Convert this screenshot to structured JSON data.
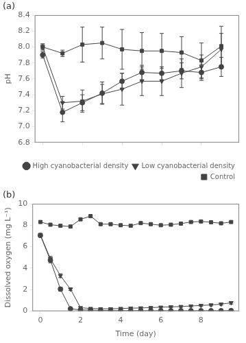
{
  "chart_data": [
    {
      "type": "line",
      "annotation": "(a)",
      "y_label": "pH",
      "x": [
        0,
        1,
        2,
        3,
        4,
        5,
        6,
        7,
        8,
        9
      ],
      "series": [
        {
          "name": "High cyanobacterial density",
          "color": "#444444",
          "marker": "circle",
          "values": [
            7.9,
            7.18,
            7.3,
            7.42,
            7.57,
            7.68,
            7.67,
            7.7,
            7.68,
            7.75
          ],
          "errors": [
            0.04,
            0.12,
            0.1,
            0.14,
            0.1,
            0.09,
            0.08,
            0.1,
            0.1,
            0.12
          ]
        },
        {
          "name": "Low cyanobacterial density",
          "color": "#444444",
          "marker": "triangle_down",
          "values": [
            8.0,
            7.3,
            7.32,
            7.41,
            7.47,
            7.57,
            7.57,
            7.67,
            7.75,
            7.97
          ],
          "errors": [
            0.03,
            0.08,
            0.14,
            0.12,
            0.2,
            0.18,
            0.18,
            0.18,
            0.15,
            0.2
          ]
        },
        {
          "name": "Control",
          "color": "#444444",
          "marker": "square",
          "values": [
            8.0,
            7.92,
            8.03,
            8.05,
            7.97,
            7.95,
            7.95,
            7.93,
            7.83,
            8.01
          ],
          "errors": [
            0.04,
            0.04,
            0.22,
            0.2,
            0.25,
            0.23,
            0.22,
            0.2,
            0.22,
            0.25
          ]
        }
      ],
      "xlim": [
        -0.4,
        9.9
      ],
      "xticks": [
        0,
        2,
        4,
        6,
        8
      ],
      "ylim": [
        6.8,
        8.4
      ],
      "yticks": [
        6.8,
        {
          "value": 7.0,
          "label": "7.0"
        },
        7.2,
        7.4,
        7.6,
        7.8,
        {
          "value": 8.0,
          "label": "8.0"
        },
        8.2,
        8.4
      ],
      "tick_labels": "y",
      "grid": false,
      "legend": "lower right"
    },
    {
      "type": "line",
      "annotation": "(b)",
      "x_label": "Time (day)",
      "y_label": "Dissolved oxygen (mg L⁻¹)",
      "x": [
        0,
        0.5,
        1,
        1.5,
        2,
        2.5,
        3,
        3.5,
        4,
        4.5,
        5,
        5.5,
        6,
        6.5,
        7,
        7.5,
        8,
        8.5,
        9,
        9.5
      ],
      "series": [
        {
          "color": "#444444",
          "marker": "circle",
          "values": [
            7.05,
            4.75,
            2.05,
            0.22,
            0.12,
            0.1,
            0.07,
            0.06,
            0.05,
            0.05,
            0.05,
            0.04,
            0.04,
            0.04,
            0.04,
            0.04,
            0.04,
            0.04,
            0.04,
            0.05
          ],
          "errors": [
            0.15,
            0.25,
            0.18,
            0.08,
            0.04,
            0.03,
            0.03,
            0.02,
            0.02,
            0.02,
            0.02,
            0.02,
            0.02,
            0.02,
            0.02,
            0.02,
            0.02,
            0.02,
            0.02,
            0.02
          ]
        },
        {
          "color": "#444444",
          "marker": "triangle_down",
          "values": [
            7.1,
            4.88,
            3.3,
            2.05,
            0.32,
            0.25,
            0.22,
            0.22,
            0.25,
            0.28,
            0.3,
            0.33,
            0.37,
            0.4,
            0.43,
            0.48,
            0.53,
            0.58,
            0.65,
            0.78
          ],
          "errors": [
            0.15,
            0.22,
            0.18,
            0.12,
            0.07,
            0.06,
            0.06,
            0.06,
            0.06,
            0.06,
            0.07,
            0.07,
            0.07,
            0.07,
            0.08,
            0.08,
            0.09,
            0.09,
            0.1,
            0.12
          ]
        },
        {
          "color": "#444444",
          "marker": "square",
          "values": [
            8.3,
            8.05,
            7.95,
            7.88,
            8.55,
            8.85,
            8.1,
            8.1,
            8.0,
            7.95,
            8.2,
            8.1,
            8.0,
            8.05,
            8.15,
            8.3,
            8.35,
            8.28,
            8.18,
            8.3
          ],
          "errors": [
            0.12,
            0.08,
            0.08,
            0.08,
            0.1,
            0.1,
            0.08,
            0.08,
            0.08,
            0.08,
            0.08,
            0.08,
            0.08,
            0.08,
            0.08,
            0.08,
            0.08,
            0.08,
            0.08,
            0.08
          ]
        }
      ],
      "xlim": [
        -0.4,
        9.9
      ],
      "xticks": [
        0,
        2,
        4,
        6,
        8
      ],
      "ylim": [
        0,
        10
      ],
      "yticks": [
        0,
        2,
        4,
        6,
        8,
        10
      ],
      "grid": false
    }
  ]
}
